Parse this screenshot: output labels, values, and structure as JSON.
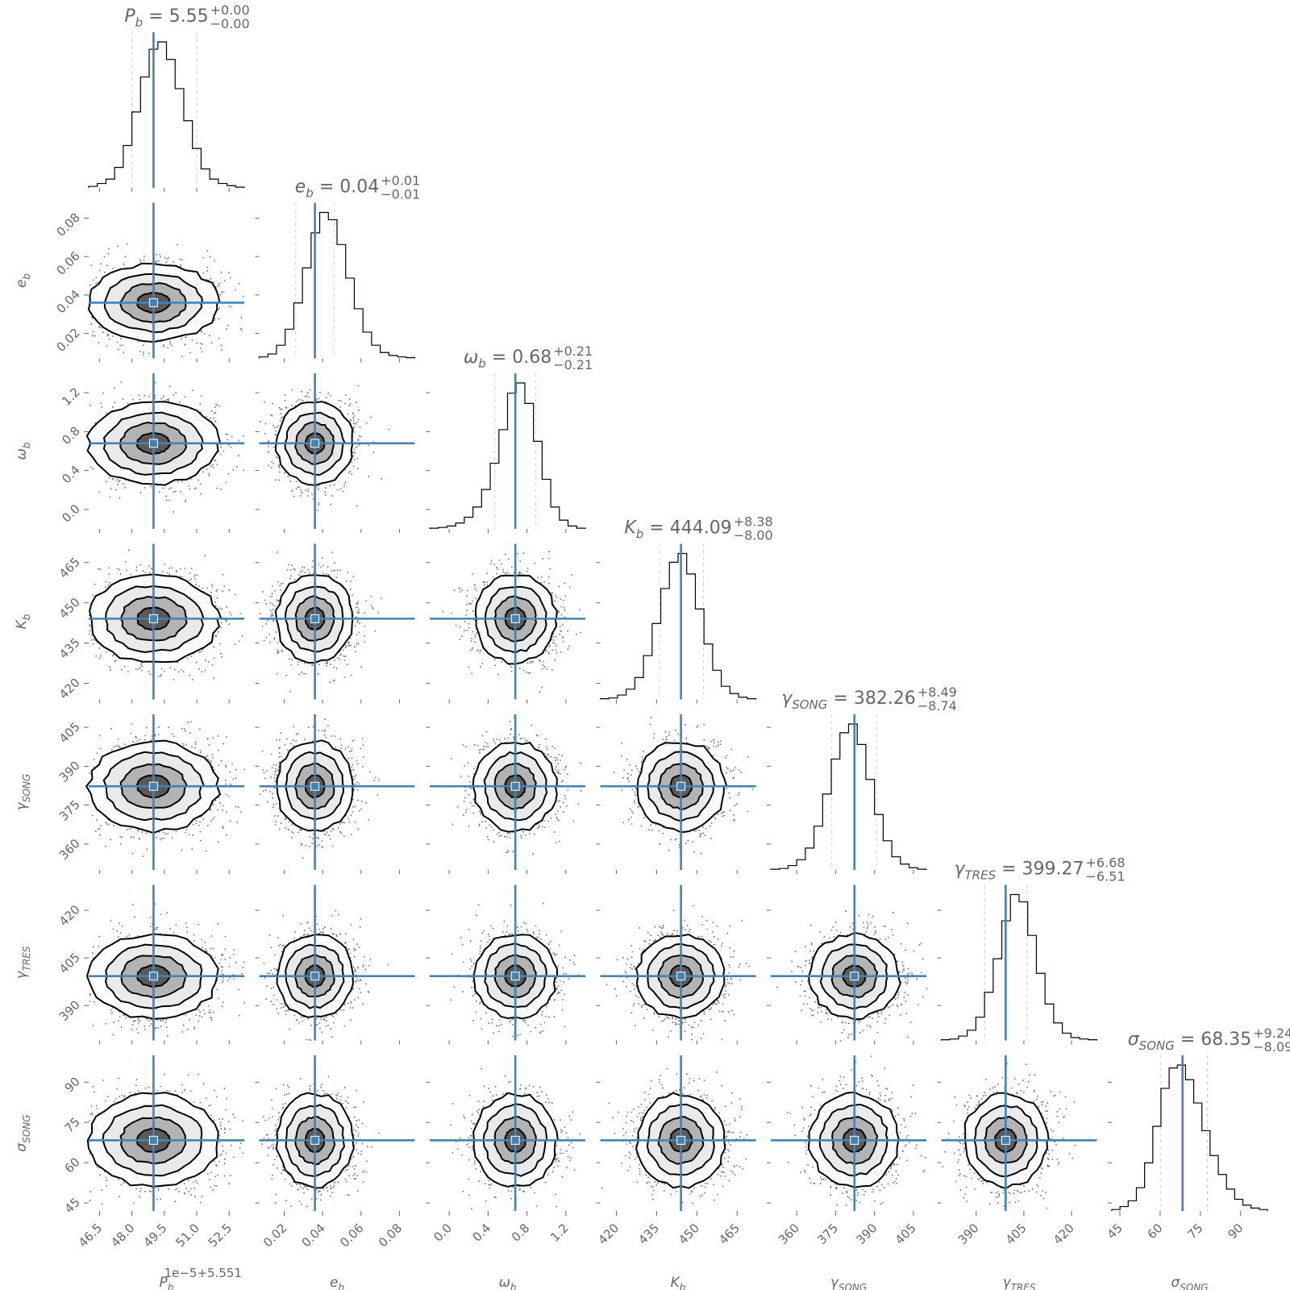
{
  "chart_data": {
    "type": "corner",
    "params": [
      {
        "name": "P_b",
        "label_base": "P",
        "label_sub": "b",
        "title_value": "5.55",
        "err_plus": "+0.00",
        "err_minus": "−0.00",
        "truth": 49.0,
        "q16": 48.0,
        "q84": 51.0,
        "range": [
          46.0,
          53.2
        ],
        "ticks": [
          46.5,
          48.0,
          49.5,
          51.0,
          52.5
        ],
        "tick_labels": [
          "46.5",
          "48.0",
          "49.5",
          "51.0",
          "52.5"
        ],
        "offset_text": "1e−5+5.551",
        "hist": [
          0.01,
          0.03,
          0.06,
          0.14,
          0.29,
          0.52,
          0.76,
          0.95,
          1.0,
          0.88,
          0.68,
          0.46,
          0.27,
          0.13,
          0.06,
          0.03,
          0.015,
          0.005
        ]
      },
      {
        "name": "e_b",
        "label_base": "e",
        "label_sub": "b",
        "title_value": "0.04",
        "err_plus": "+0.01",
        "err_minus": "−0.01",
        "truth": 0.036,
        "q16": 0.026,
        "q84": 0.046,
        "range": [
          0.007,
          0.088
        ],
        "ticks": [
          0.02,
          0.04,
          0.06,
          0.08
        ],
        "tick_labels": [
          "0.02",
          "0.04",
          "0.06",
          "0.08"
        ],
        "hist": [
          0.01,
          0.03,
          0.09,
          0.2,
          0.38,
          0.62,
          0.86,
          1.0,
          0.95,
          0.78,
          0.55,
          0.34,
          0.18,
          0.09,
          0.04,
          0.02,
          0.01,
          0.005
        ]
      },
      {
        "name": "omega_b",
        "label_base": "ω",
        "label_sub": "b",
        "title_value": "0.68",
        "err_plus": "+0.21",
        "err_minus": "−0.21",
        "truth": 0.68,
        "q16": 0.47,
        "q84": 0.89,
        "range": [
          -0.2,
          1.4
        ],
        "ticks": [
          0.0,
          0.4,
          0.8,
          1.2
        ],
        "tick_labels": [
          "0.0",
          "0.4",
          "0.8",
          "1.2"
        ],
        "hist": [
          0.005,
          0.01,
          0.02,
          0.04,
          0.08,
          0.15,
          0.27,
          0.45,
          0.68,
          0.93,
          1.0,
          0.86,
          0.6,
          0.34,
          0.15,
          0.06,
          0.02,
          0.005
        ]
      },
      {
        "name": "K_b",
        "label_base": "K",
        "label_sub": "b",
        "title_value": "444.09",
        "err_plus": "+8.38",
        "err_minus": "−8.00",
        "truth": 444.09,
        "q16": 436.09,
        "q84": 452.47,
        "range": [
          414.0,
          472.0
        ],
        "ticks": [
          420,
          435,
          450,
          465
        ],
        "tick_labels": [
          "420",
          "435",
          "450",
          "465"
        ],
        "hist": [
          0.005,
          0.01,
          0.03,
          0.07,
          0.15,
          0.3,
          0.52,
          0.76,
          0.94,
          1.0,
          0.86,
          0.62,
          0.38,
          0.2,
          0.09,
          0.04,
          0.015,
          0.005
        ]
      },
      {
        "name": "gamma_SONG",
        "label_base": "γ",
        "label_sub": "SONG",
        "title_value": "382.26",
        "err_plus": "+8.49",
        "err_minus": "−8.74",
        "truth": 382.26,
        "q16": 373.52,
        "q84": 390.75,
        "range": [
          350.0,
          410.0
        ],
        "ticks": [
          360,
          375,
          390,
          405
        ],
        "tick_labels": [
          "360",
          "375",
          "390",
          "405"
        ],
        "hist": [
          0.005,
          0.01,
          0.03,
          0.07,
          0.15,
          0.3,
          0.52,
          0.76,
          0.94,
          1.0,
          0.86,
          0.62,
          0.38,
          0.2,
          0.09,
          0.04,
          0.015,
          0.005
        ]
      },
      {
        "name": "gamma_TRES",
        "label_base": "γ",
        "label_sub": "TRES",
        "title_value": "399.27",
        "err_plus": "+6.68",
        "err_minus": "−6.51",
        "truth": 399.27,
        "q16": 392.76,
        "q84": 405.95,
        "range": [
          379.0,
          428.0
        ],
        "ticks": [
          390,
          405,
          420
        ],
        "tick_labels": [
          "390",
          "405",
          "420"
        ],
        "hist": [
          0.005,
          0.01,
          0.03,
          0.07,
          0.16,
          0.33,
          0.56,
          0.82,
          1.0,
          0.95,
          0.72,
          0.46,
          0.25,
          0.12,
          0.05,
          0.02,
          0.01,
          0.005
        ]
      },
      {
        "name": "sigma_SONG",
        "label_base": "σ",
        "label_sub": "SONG",
        "title_value": "68.35",
        "err_plus": "+9.24",
        "err_minus": "−8.09",
        "truth": 68.35,
        "q16": 60.26,
        "q84": 77.59,
        "range": [
          42.0,
          100.0
        ],
        "ticks": [
          45,
          60,
          75,
          90
        ],
        "tick_labels": [
          "45",
          "60",
          "75",
          "90"
        ],
        "hist": [
          0.01,
          0.03,
          0.07,
          0.16,
          0.33,
          0.58,
          0.84,
          0.98,
          1.0,
          0.9,
          0.74,
          0.55,
          0.38,
          0.25,
          0.15,
          0.08,
          0.04,
          0.02,
          0.01
        ]
      }
    ],
    "colors": {
      "truth": "#4682b4",
      "histogram": "#000000",
      "contour": "#000000",
      "text": "#666666"
    },
    "grid": false,
    "legend": "none"
  }
}
